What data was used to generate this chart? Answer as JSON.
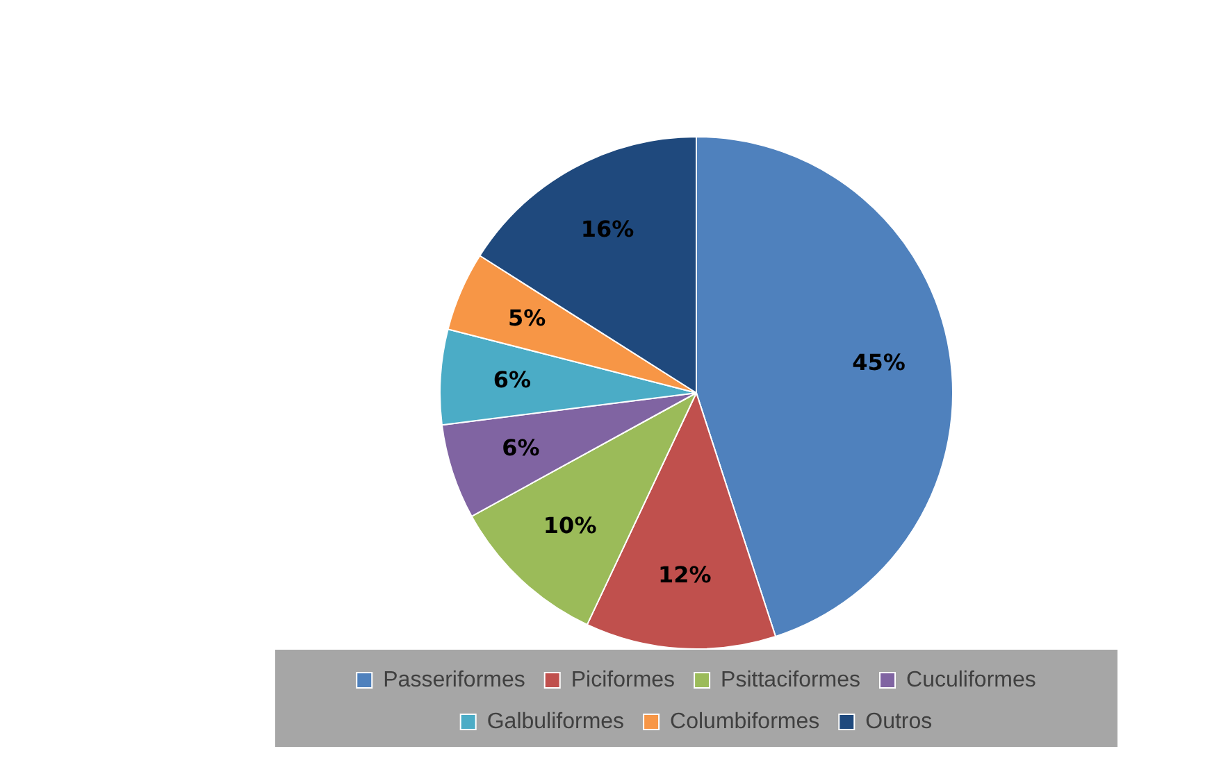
{
  "chart_data": {
    "type": "pie",
    "categories": [
      "Passeriformes",
      "Piciformes",
      "Psittaciformes",
      "Cuculiformes",
      "Galbuliformes",
      "Columbiformes",
      "Outros"
    ],
    "values": [
      45,
      12,
      10,
      6,
      6,
      5,
      16
    ],
    "colors": [
      "#4f81bd",
      "#c0504d",
      "#9bbb59",
      "#8064a2",
      "#4bacc6",
      "#f79646",
      "#1f497d"
    ],
    "value_labels": [
      "45%",
      "12%",
      "10%",
      "6%",
      "6%",
      "5%",
      "16%"
    ],
    "legend": "bottom"
  }
}
